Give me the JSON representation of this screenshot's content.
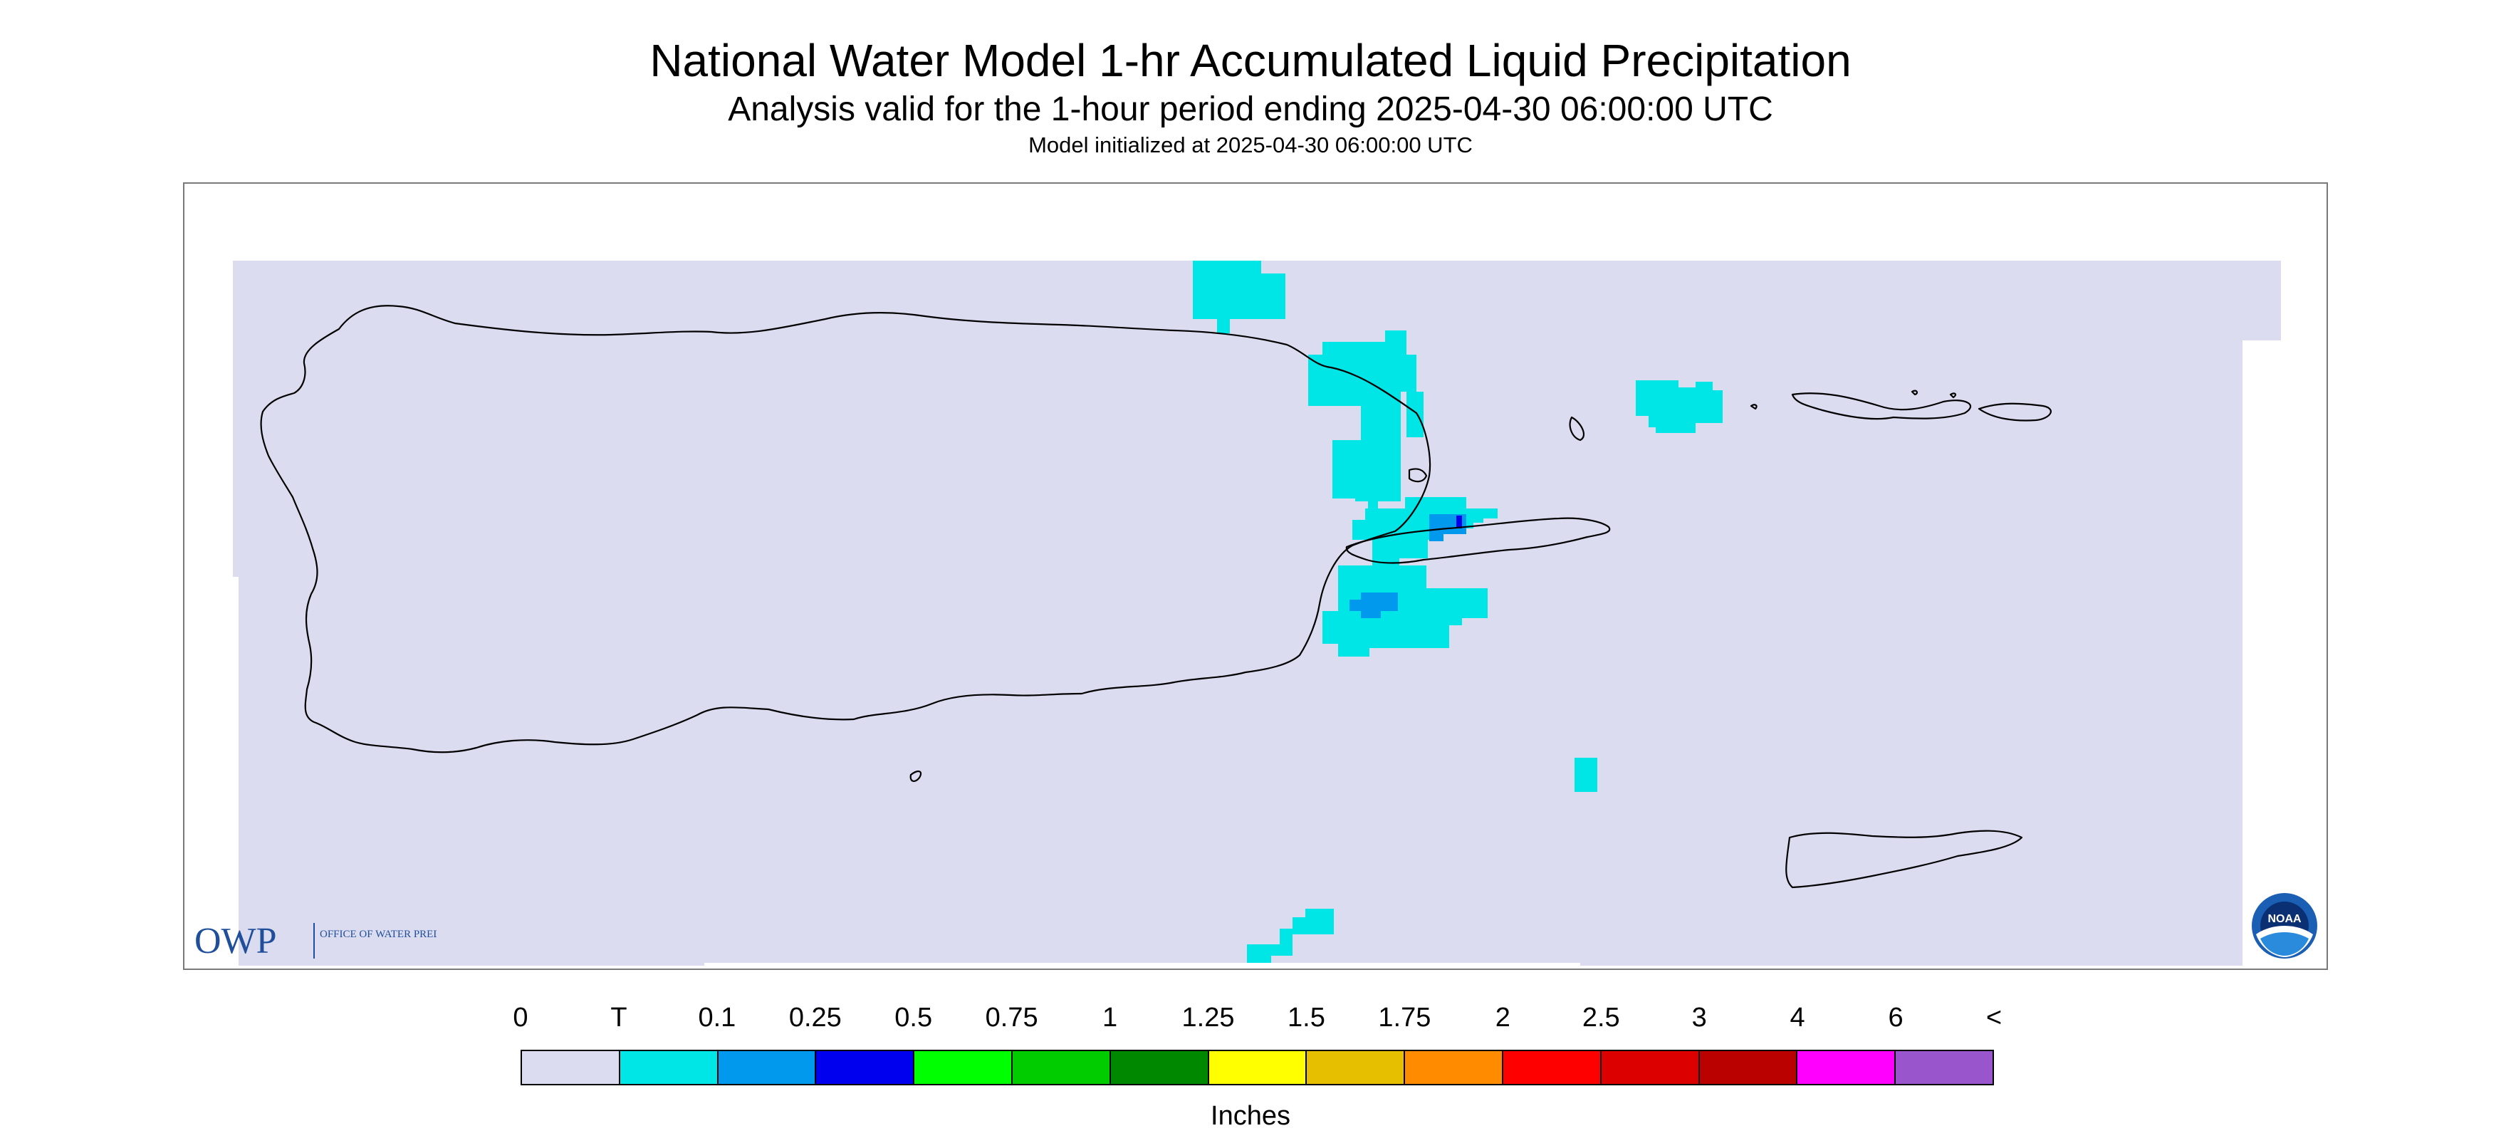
{
  "header": {
    "title": "National Water Model 1-hr Accumulated Liquid Precipitation",
    "subtitle": "Analysis valid for the 1-hour period ending 2025-04-30 06:00:00 UTC",
    "init_line": "Model initialized at 2025-04-30 06:00:00 UTC"
  },
  "map": {
    "region_labels": [],
    "background_color": "#dcdcf0",
    "coastline_color": "#000000"
  },
  "logos": {
    "owp_text": "OWP",
    "owp_sub": "OFFICE OF WATER PREDICTION",
    "owp_color": "#1f4e9a",
    "noaa_text": "NOAA"
  },
  "legend": {
    "tick_labels": [
      "0",
      "T",
      "0.1",
      "0.25",
      "0.5",
      "0.75",
      "1",
      "1.25",
      "1.5",
      "1.75",
      "2",
      "2.5",
      "3",
      "4",
      "6",
      "<"
    ],
    "colors": [
      "#dcdcf0",
      "#00e5e5",
      "#0099ee",
      "#0000ee",
      "#00ff00",
      "#00cc00",
      "#008800",
      "#ffff00",
      "#e6c000",
      "#ff8c00",
      "#ff0000",
      "#dd0000",
      "#bb0000",
      "#ff00ff",
      "#9955cc"
    ],
    "units_label": "Inches"
  }
}
